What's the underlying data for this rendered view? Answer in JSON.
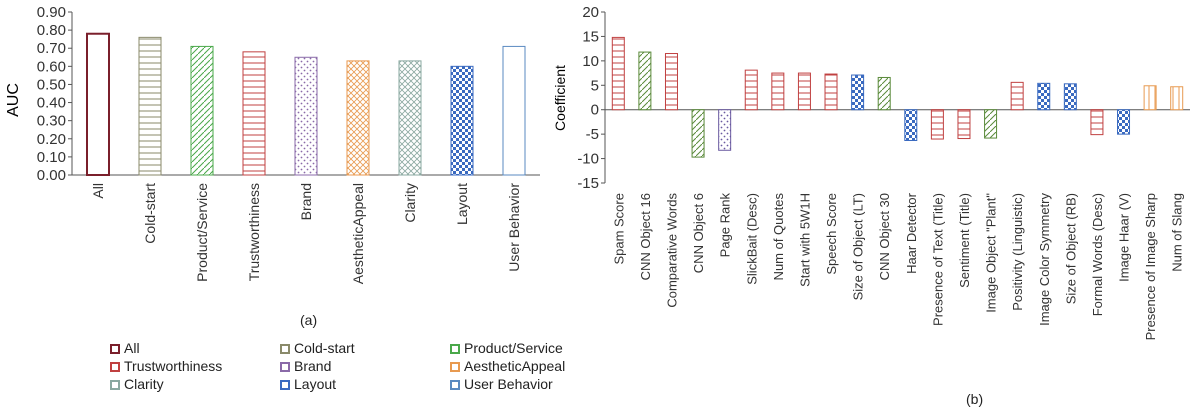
{
  "chart_data": [
    {
      "type": "bar",
      "panel_label": "(a)",
      "ylabel": "AUC",
      "ylim": [
        0,
        0.9
      ],
      "yticks": [
        "0.00",
        "0.10",
        "0.20",
        "0.30",
        "0.40",
        "0.50",
        "0.60",
        "0.70",
        "0.80",
        "0.90"
      ],
      "categories": [
        "All",
        "Cold-start",
        "Product/Service",
        "Trustworthiness",
        "Brand",
        "AestheticAppeal",
        "Clarity",
        "Layout",
        "User Behavior"
      ],
      "values": [
        0.78,
        0.76,
        0.71,
        0.68,
        0.65,
        0.63,
        0.63,
        0.6,
        0.71
      ],
      "grid": false,
      "legend": {
        "placement": "bottom",
        "entries": [
          "All",
          "Cold-start",
          "Product/Service",
          "Trustworthiness",
          "Brand",
          "AestheticAppeal",
          "Clarity",
          "Layout",
          "User Behavior"
        ]
      },
      "colors": [
        "#7a1f2b",
        "#8a8a6a",
        "#4aa84a",
        "#c04040",
        "#8a6aa8",
        "#e89a50",
        "#8aa8a0",
        "#3a6ac0",
        "#5a8ac0"
      ]
    },
    {
      "type": "bar",
      "panel_label": "(b)",
      "ylabel": "Coefficient",
      "ylim": [
        -15,
        20
      ],
      "yticks": [
        "-15",
        "-10",
        "-5",
        "0",
        "5",
        "10",
        "15",
        "20"
      ],
      "categories": [
        "Spam Score",
        "CNN Object 16",
        "Comparative Words",
        "CNN Object 6",
        "Page Rank",
        "SlickBait (Desc)",
        "Num of Quotes",
        "Start with 5W1H",
        "Speech Score",
        "Size of Object (LT)",
        "CNN Object 30",
        "Haar Detector",
        "Presence of Text (Title)",
        "Sentiment (Title)",
        "Image Object \"Plant\"",
        "Positivity (Linguistic)",
        "Image Color Symmetry",
        "Size of Object (RB)",
        "Formal Words (Desc)",
        "Image Haar (V)",
        "Presence of Image Sharp",
        "Num of Slang"
      ],
      "values": [
        14.8,
        11.8,
        11.5,
        -9.7,
        -8.3,
        8.1,
        7.5,
        7.5,
        7.3,
        7.1,
        6.6,
        -6.3,
        -6.0,
        -5.9,
        -5.8,
        5.6,
        5.4,
        5.3,
        -5.1,
        -5.0,
        4.9,
        4.7
      ],
      "grid": false,
      "colors": [
        "#c04040",
        "#5a8a3a",
        "#c04040",
        "#5a8a3a",
        "#6a5aa0",
        "#c04040",
        "#c04040",
        "#c04040",
        "#c04040",
        "#3a6ac0",
        "#5a8a3a",
        "#3a6ac0",
        "#c04040",
        "#c04040",
        "#5a8a3a",
        "#c04040",
        "#3a6ac0",
        "#3a6ac0",
        "#c04040",
        "#3a6ac0",
        "#e89a50",
        "#e89a50"
      ]
    }
  ]
}
